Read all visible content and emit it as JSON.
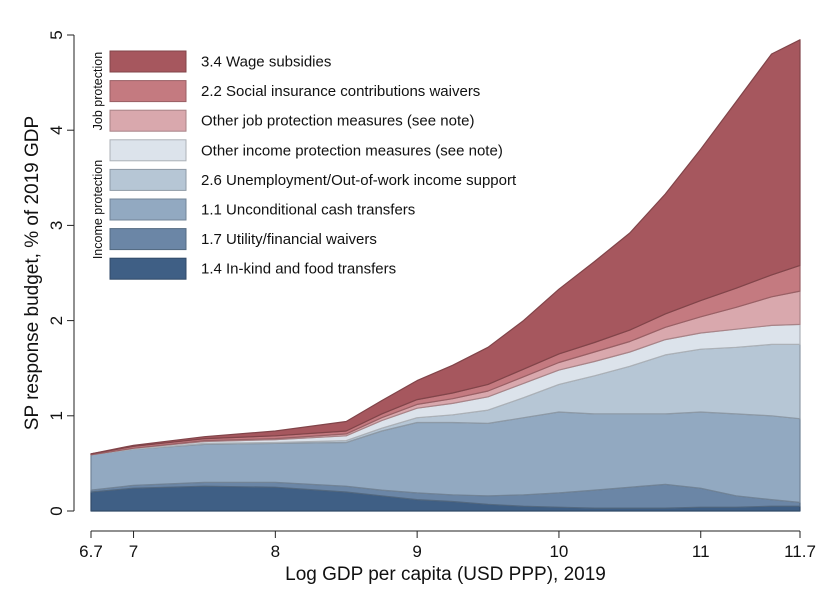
{
  "chart_data": {
    "type": "area",
    "stacked": true,
    "title": "",
    "xlabel": "Log GDP per capita (USD PPP), 2019",
    "ylabel": "SP response budget, % of 2019 GDP",
    "xlim": [
      6.7,
      11.7
    ],
    "ylim": [
      0,
      5
    ],
    "x_ticks": [
      "6.7",
      "7",
      "8",
      "9",
      "10",
      "11",
      "11.7"
    ],
    "y_ticks": [
      "0",
      "1",
      "2",
      "3",
      "4",
      "5"
    ],
    "grid": false,
    "legend_position": "top-left, inside",
    "legend_groups": [
      {
        "label": "Job protection",
        "series": [
          "3.4 Wage subsidies",
          "2.2 Social insurance contributions waivers",
          "Other job protection measures (see note)"
        ]
      },
      {
        "label": "Income protection",
        "series": [
          "Other income protection measures (see note)",
          "2.6 Unemployment/Out-of-work income support",
          "1.1 Unconditional cash transfers",
          "1.7 Utility/financial waivers",
          "1.4 In-kind and food transfers"
        ]
      }
    ],
    "x": [
      6.7,
      7.0,
      7.5,
      8.0,
      8.5,
      8.75,
      9.0,
      9.25,
      9.5,
      9.75,
      10.0,
      10.25,
      10.5,
      10.75,
      11.0,
      11.25,
      11.5,
      11.7
    ],
    "series": [
      {
        "name": "1.4 In-kind and food transfers",
        "color": "#3f5f85",
        "values": [
          0.2,
          0.24,
          0.26,
          0.25,
          0.2,
          0.16,
          0.12,
          0.1,
          0.07,
          0.05,
          0.04,
          0.03,
          0.03,
          0.03,
          0.04,
          0.04,
          0.05,
          0.05
        ]
      },
      {
        "name": "1.7 Utility/financial waivers",
        "color": "#6b86a6",
        "values": [
          0.02,
          0.03,
          0.04,
          0.05,
          0.06,
          0.06,
          0.07,
          0.07,
          0.09,
          0.12,
          0.15,
          0.19,
          0.22,
          0.25,
          0.2,
          0.12,
          0.07,
          0.04
        ]
      },
      {
        "name": "1.1 Unconditional cash transfers",
        "color": "#92a9c1",
        "values": [
          0.37,
          0.38,
          0.4,
          0.41,
          0.46,
          0.62,
          0.74,
          0.76,
          0.76,
          0.81,
          0.85,
          0.8,
          0.77,
          0.74,
          0.8,
          0.86,
          0.88,
          0.88
        ]
      },
      {
        "name": "2.6 Unemployment/Out-of-work income support",
        "color": "#b6c6d5",
        "values": [
          0.0,
          0.0,
          0.01,
          0.01,
          0.02,
          0.03,
          0.05,
          0.08,
          0.14,
          0.21,
          0.29,
          0.4,
          0.5,
          0.62,
          0.66,
          0.7,
          0.75,
          0.78
        ]
      },
      {
        "name": "Other income protection measures (see note)",
        "color": "#dce3eb",
        "values": [
          0.0,
          0.01,
          0.02,
          0.03,
          0.05,
          0.08,
          0.1,
          0.12,
          0.14,
          0.15,
          0.15,
          0.15,
          0.15,
          0.16,
          0.17,
          0.19,
          0.2,
          0.21
        ]
      },
      {
        "name": "Other job protection measures (see note)",
        "color": "#d9a8ad",
        "values": [
          0.0,
          0.0,
          0.01,
          0.01,
          0.02,
          0.03,
          0.04,
          0.05,
          0.06,
          0.07,
          0.08,
          0.1,
          0.11,
          0.13,
          0.17,
          0.23,
          0.3,
          0.35
        ]
      },
      {
        "name": "2.2 Social insurance contributions waivers",
        "color": "#c47a80",
        "values": [
          0.01,
          0.02,
          0.02,
          0.03,
          0.03,
          0.04,
          0.05,
          0.06,
          0.07,
          0.08,
          0.09,
          0.1,
          0.12,
          0.14,
          0.17,
          0.2,
          0.23,
          0.27
        ]
      },
      {
        "name": "3.4 Wage subsidies",
        "color": "#a6575e",
        "values": [
          0.0,
          0.01,
          0.02,
          0.05,
          0.1,
          0.14,
          0.2,
          0.29,
          0.39,
          0.51,
          0.68,
          0.85,
          1.02,
          1.26,
          1.59,
          1.96,
          2.32,
          2.37
        ]
      }
    ]
  }
}
